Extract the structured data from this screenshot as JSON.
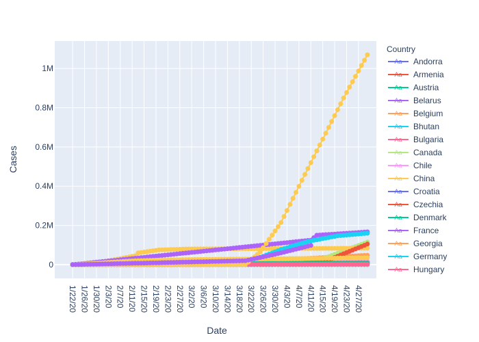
{
  "chart_data": {
    "type": "line",
    "xlabel": "Date",
    "ylabel": "Cases",
    "legend_title": "Country",
    "legend_position": "right",
    "grid": true,
    "x_start": "2020-01-22",
    "x_end": "2020-04-30",
    "xlim": [
      "2020-01-16",
      "2020-05-03"
    ],
    "ylim": [
      -70000,
      1140000
    ],
    "x_ticks": [
      "1/22/20",
      "1/26/20",
      "1/30/20",
      "2/3/20",
      "2/7/20",
      "2/11/20",
      "2/15/20",
      "2/19/20",
      "2/23/20",
      "2/27/20",
      "3/2/20",
      "3/6/20",
      "3/10/20",
      "3/14/20",
      "3/18/20",
      "3/22/20",
      "3/26/20",
      "3/30/20",
      "4/3/20",
      "4/7/20",
      "4/11/20",
      "4/15/20",
      "4/19/20",
      "4/23/20",
      "4/27/20"
    ],
    "y_ticks": [
      {
        "value": 0,
        "label": "0"
      },
      {
        "value": 200000,
        "label": "0.2M"
      },
      {
        "value": 400000,
        "label": "0.4M"
      },
      {
        "value": 600000,
        "label": "0.6M"
      },
      {
        "value": 800000,
        "label": "0.8M"
      },
      {
        "value": 1000000,
        "label": "1M"
      }
    ],
    "series": [
      {
        "name": "Andorra",
        "color": "#636efa",
        "points": [
          [
            "2020-01-22",
            0
          ],
          [
            "2020-03-01",
            0
          ],
          [
            "2020-04-30",
            750
          ]
        ]
      },
      {
        "name": "Armenia",
        "color": "#EF553B",
        "points": [
          [
            "2020-01-22",
            0
          ],
          [
            "2020-03-01",
            0
          ],
          [
            "2020-04-30",
            2000
          ]
        ]
      },
      {
        "name": "Austria",
        "color": "#00cc96",
        "points": [
          [
            "2020-01-22",
            0
          ],
          [
            "2020-02-25",
            0
          ],
          [
            "2020-04-30",
            15500
          ]
        ]
      },
      {
        "name": "Belarus",
        "color": "#ab63fa",
        "points": [
          [
            "2020-01-22",
            0
          ],
          [
            "2020-02-28",
            0
          ],
          [
            "2020-04-30",
            14000
          ]
        ]
      },
      {
        "name": "Belgium",
        "color": "#FFA15A",
        "points": [
          [
            "2020-01-22",
            0
          ],
          [
            "2020-03-01",
            0
          ],
          [
            "2020-04-30",
            48000
          ]
        ]
      },
      {
        "name": "Bhutan",
        "color": "#19d3f3",
        "points": [
          [
            "2020-01-22",
            0
          ],
          [
            "2020-04-30",
            10
          ]
        ]
      },
      {
        "name": "Bulgaria",
        "color": "#FF6692",
        "points": [
          [
            "2020-01-22",
            0
          ],
          [
            "2020-03-08",
            0
          ],
          [
            "2020-04-30",
            1500
          ]
        ]
      },
      {
        "name": "Canada",
        "color": "#B6E880",
        "points": [
          [
            "2020-01-22",
            0
          ],
          [
            "2020-03-05",
            30
          ],
          [
            "2020-03-20",
            1000
          ],
          [
            "2020-04-01",
            9500
          ],
          [
            "2020-04-15",
            30000
          ],
          [
            "2020-04-30",
            115000
          ]
        ]
      },
      {
        "name": "Chile",
        "color": "#FF97FF",
        "points": [
          [
            "2020-01-22",
            0
          ],
          [
            "2020-03-03",
            0
          ],
          [
            "2020-04-30",
            16000
          ]
        ]
      },
      {
        "name": "China",
        "color": "#FECB52",
        "points": [
          [
            "2020-01-22",
            550
          ],
          [
            "2020-02-01",
            14000
          ],
          [
            "2020-02-12",
            45000
          ],
          [
            "2020-02-13",
            60000
          ],
          [
            "2020-02-20",
            75000
          ],
          [
            "2020-03-01",
            80000
          ],
          [
            "2020-04-30",
            83900
          ]
        ]
      },
      {
        "name": "Croatia",
        "color": "#636efa",
        "points": [
          [
            "2020-01-22",
            0
          ],
          [
            "2020-04-30",
            2100
          ]
        ]
      },
      {
        "name": "Czechia",
        "color": "#EF553B",
        "points": [
          [
            "2020-01-22",
            0
          ],
          [
            "2020-03-01",
            0
          ],
          [
            "2020-04-01",
            3500
          ],
          [
            "2020-04-15",
            12000
          ],
          [
            "2020-04-30",
            105000
          ]
        ]
      },
      {
        "name": "Denmark",
        "color": "#00cc96",
        "points": [
          [
            "2020-01-22",
            0
          ],
          [
            "2020-04-30",
            9300
          ]
        ]
      },
      {
        "name": "France",
        "color": "#ab63fa",
        "points": [
          [
            "2020-01-22",
            0
          ],
          [
            "2020-04-11",
            125000
          ],
          [
            "2020-04-13",
            150000
          ],
          [
            "2020-04-30",
            167000
          ]
        ]
      },
      {
        "name": "Georgia",
        "color": "#FFA15A",
        "points": [
          [
            "2020-01-22",
            0
          ],
          [
            "2020-04-30",
            540
          ]
        ]
      },
      {
        "name": "Germany",
        "color": "#19d3f3",
        "points": [
          [
            "2020-01-22",
            0
          ],
          [
            "2020-03-10",
            1500
          ],
          [
            "2020-03-20",
            20000
          ],
          [
            "2020-03-25",
            37000
          ],
          [
            "2020-04-01",
            77000
          ],
          [
            "2020-04-10",
            118000
          ],
          [
            "2020-04-20",
            147000
          ],
          [
            "2020-04-30",
            160000
          ]
        ]
      },
      {
        "name": "Hungary",
        "color": "#FF6692",
        "points": [
          [
            "2020-01-22",
            0
          ],
          [
            "2020-04-30",
            3000
          ]
        ]
      },
      {
        "name": "",
        "color": "#FECB52",
        "points": [
          [
            "2020-01-22",
            0
          ],
          [
            "2020-03-20",
            0
          ],
          [
            "2020-03-25",
            65000
          ],
          [
            "2020-04-01",
            215000
          ],
          [
            "2020-04-08",
            430000
          ],
          [
            "2020-04-15",
            640000
          ],
          [
            "2020-04-22",
            850000
          ],
          [
            "2020-04-30",
            1070000
          ]
        ]
      },
      {
        "name": "",
        "color": "#FECB52",
        "points": [
          [
            "2020-01-22",
            0
          ],
          [
            "2020-02-12",
            20000
          ],
          [
            "2020-02-25",
            25000
          ],
          [
            "2020-04-30",
            35000
          ]
        ]
      },
      {
        "name": "",
        "color": "#ab63fa",
        "points": [
          [
            "2020-01-22",
            0
          ],
          [
            "2020-03-20",
            20000
          ],
          [
            "2020-04-01",
            60000
          ],
          [
            "2020-04-11",
            98000
          ]
        ]
      }
    ]
  }
}
